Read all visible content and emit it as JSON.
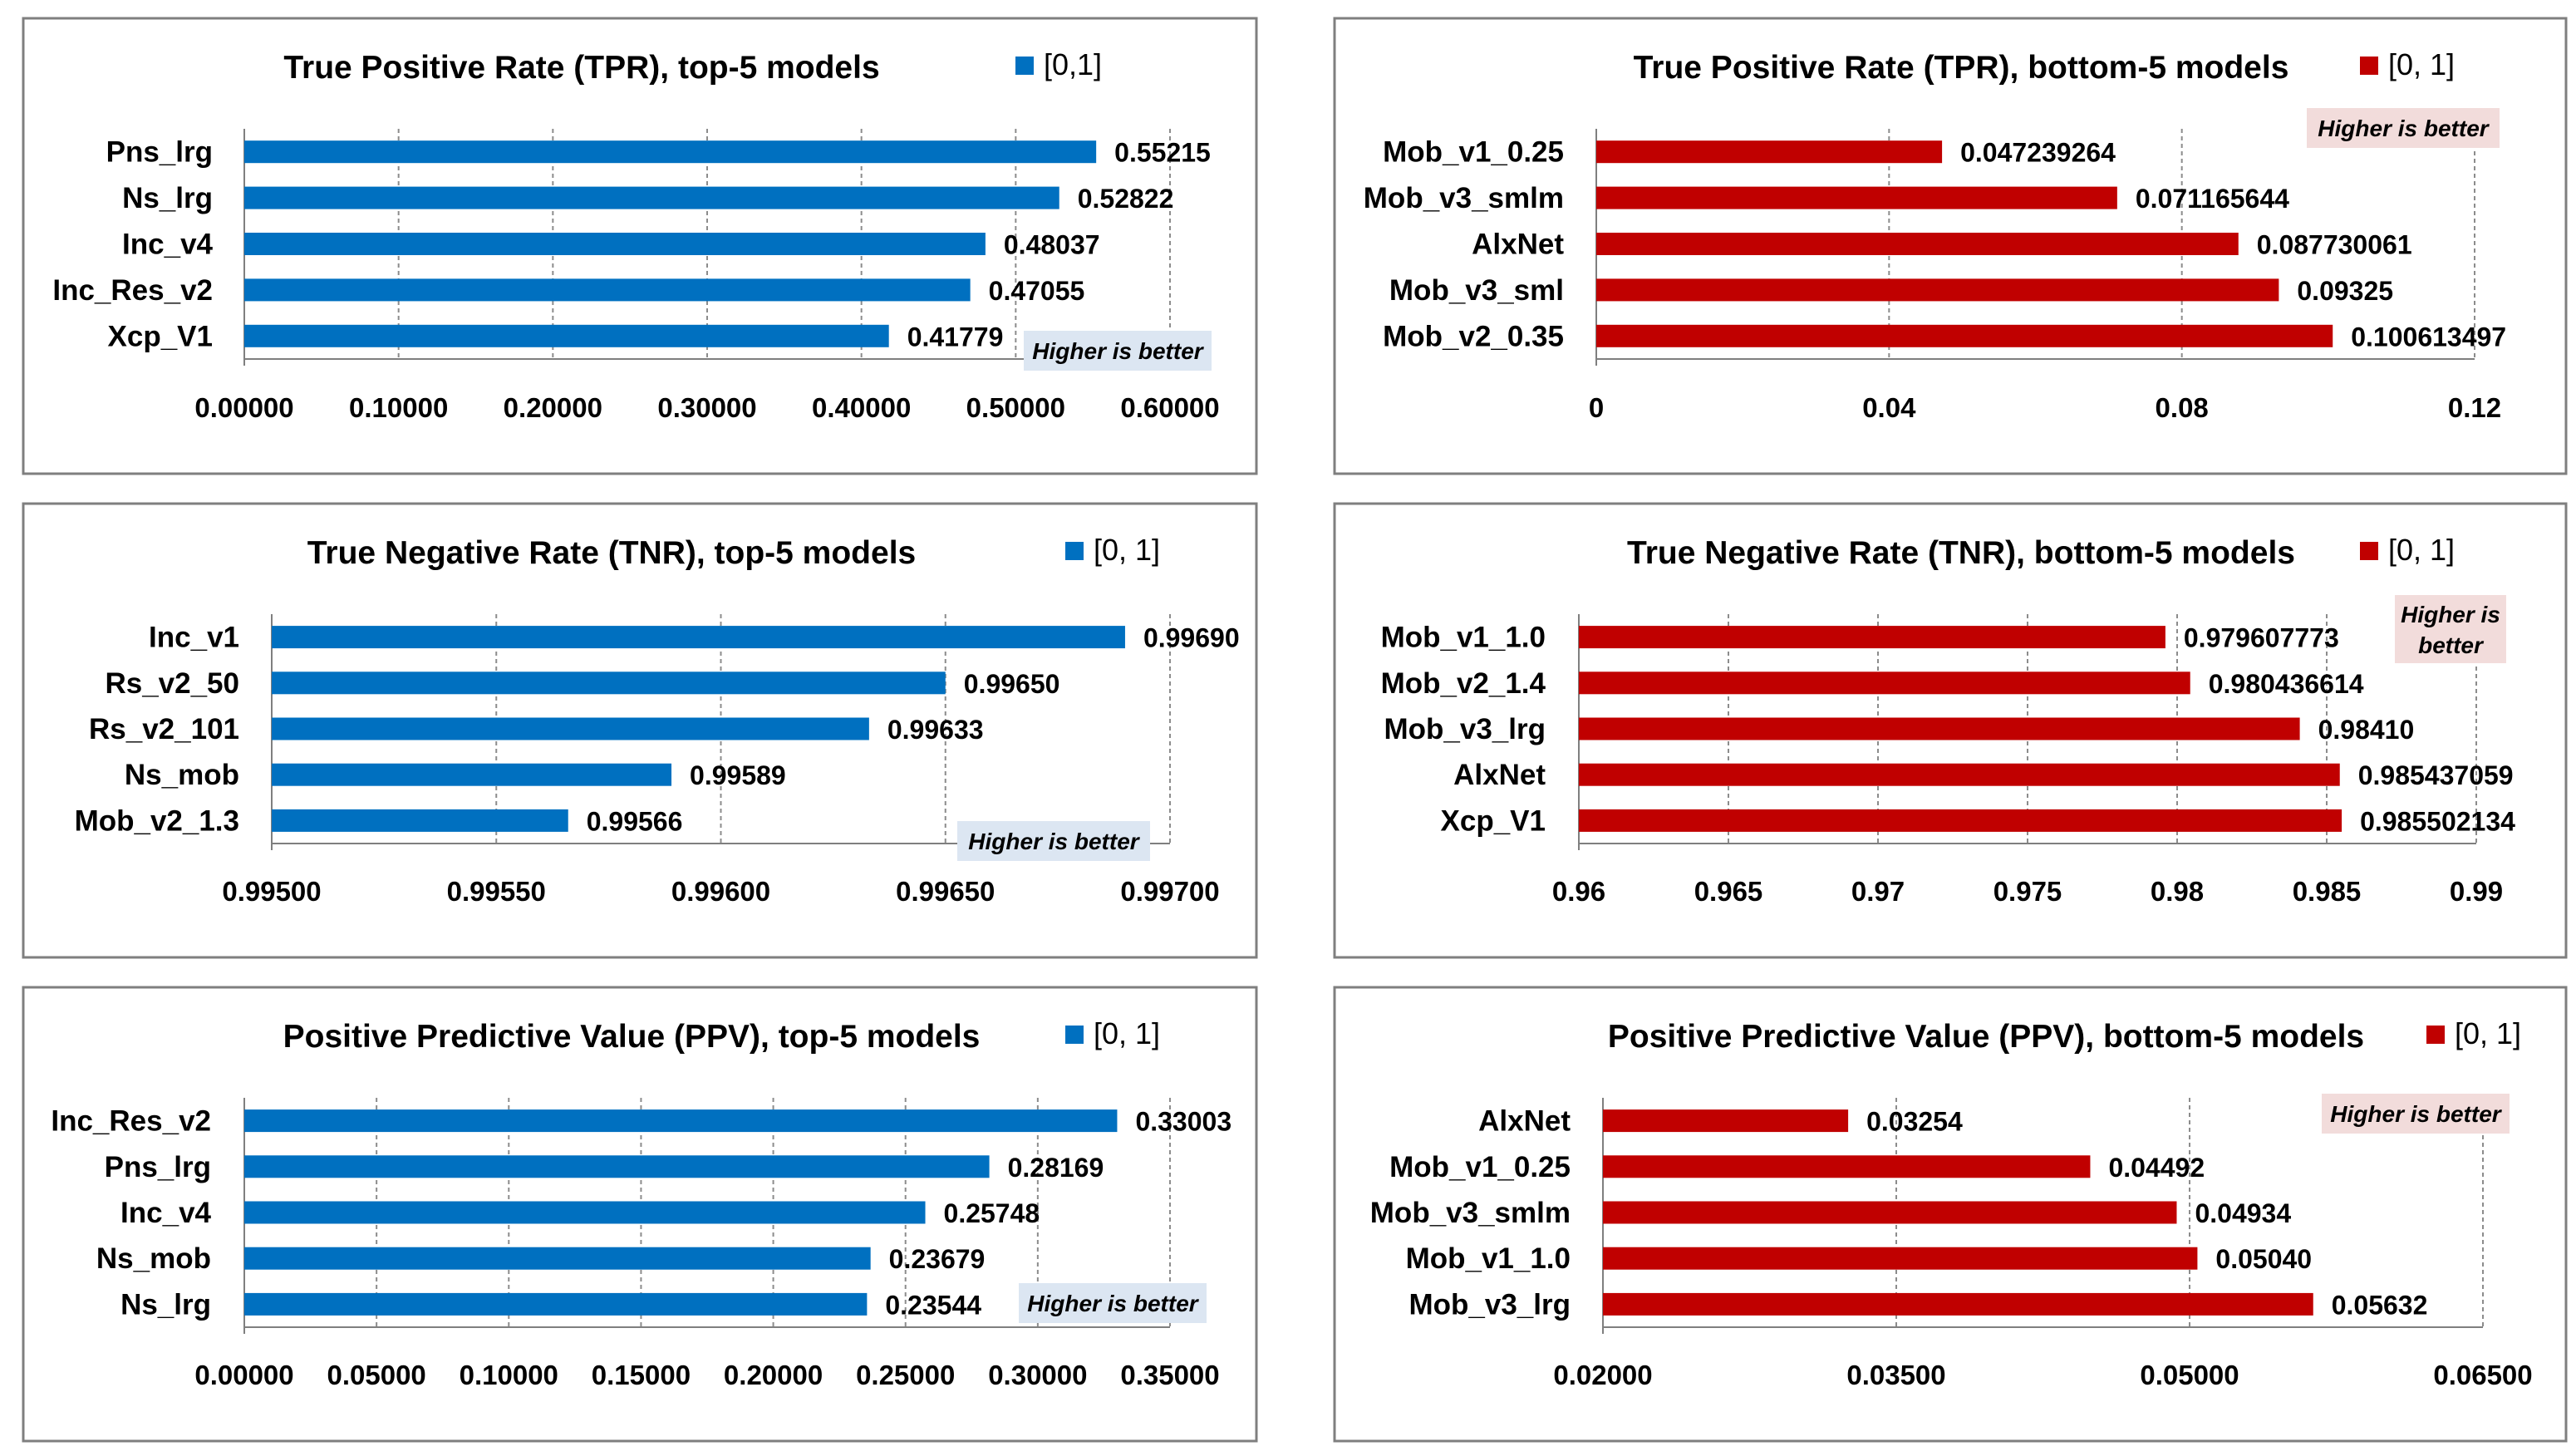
{
  "chart_data": [
    {
      "type": "bar",
      "title": "True Positive Rate (TPR), top-5 models",
      "legend": "[0,1]",
      "note": "Higher is better",
      "color": "#0070c0",
      "note_bg": "#dce6f2",
      "categories": [
        "Pns_lrg",
        "Ns_lrg",
        "Inc_v4",
        "Inc_Res_v2",
        "Xcp_V1"
      ],
      "values": [
        0.55215,
        0.52822,
        0.48037,
        0.47055,
        0.41779
      ],
      "value_labels": [
        "0.55215",
        "0.52822",
        "0.48037",
        "0.47055",
        "0.41779"
      ],
      "xlim": [
        0,
        0.6
      ],
      "ticks": [
        0,
        0.1,
        0.2,
        0.3,
        0.4,
        0.5,
        0.6
      ],
      "tick_labels": [
        "0.00000",
        "0.10000",
        "0.20000",
        "0.30000",
        "0.40000",
        "0.50000",
        "0.60000"
      ]
    },
    {
      "type": "bar",
      "title": "True Positive Rate (TPR), bottom-5 models",
      "legend": "[0, 1]",
      "note": "Higher is better",
      "color": "#c00000",
      "note_bg": "#f2dcdb",
      "categories": [
        "Mob_v1_0.25",
        "Mob_v3_smlm",
        "AlxNet",
        "Mob_v3_sml",
        "Mob_v2_0.35"
      ],
      "values": [
        0.047239264,
        0.071165644,
        0.087730061,
        0.09325,
        0.100613497
      ],
      "value_labels": [
        "0.047239264",
        "0.071165644",
        "0.087730061",
        "0.09325",
        "0.100613497"
      ],
      "xlim": [
        0,
        0.12
      ],
      "ticks": [
        0,
        0.04,
        0.08,
        0.12
      ],
      "tick_labels": [
        "0",
        "0.04",
        "0.08",
        "0.12"
      ]
    },
    {
      "type": "bar",
      "title": "True Negative Rate (TNR), top-5 models",
      "legend": "[0, 1]",
      "note": "Higher is better",
      "color": "#0070c0",
      "note_bg": "#dce6f2",
      "categories": [
        "Inc_v1",
        "Rs_v2_50",
        "Rs_v2_101",
        "Ns_mob",
        "Mob_v2_1.3"
      ],
      "values": [
        0.9969,
        0.9965,
        0.99633,
        0.99589,
        0.99566
      ],
      "value_labels": [
        "0.99690",
        "0.99650",
        "0.99633",
        "0.99589",
        "0.99566"
      ],
      "xlim": [
        0.995,
        0.997
      ],
      "ticks": [
        0.995,
        0.9955,
        0.996,
        0.9965,
        0.997
      ],
      "tick_labels": [
        "0.99500",
        "0.99550",
        "0.99600",
        "0.99650",
        "0.99700"
      ]
    },
    {
      "type": "bar",
      "title": "True Negative Rate (TNR), bottom-5 models",
      "legend": "[0, 1]",
      "note": "Higher is better",
      "color": "#c00000",
      "note_bg": "#f2dcdb",
      "categories": [
        "Mob_v1_1.0",
        "Mob_v2_1.4",
        "Mob_v3_lrg",
        "AlxNet",
        "Xcp_V1"
      ],
      "values": [
        0.979607773,
        0.980436614,
        0.9841,
        0.985437059,
        0.985502134
      ],
      "value_labels": [
        "0.979607773",
        "0.980436614",
        "0.98410",
        "0.985437059",
        "0.985502134"
      ],
      "xlim": [
        0.96,
        0.99
      ],
      "ticks": [
        0.96,
        0.965,
        0.97,
        0.975,
        0.98,
        0.985,
        0.99
      ],
      "tick_labels": [
        "0.96",
        "0.965",
        "0.97",
        "0.975",
        "0.98",
        "0.985",
        "0.99"
      ]
    },
    {
      "type": "bar",
      "title": "Positive Predictive Value (PPV), top-5 models",
      "legend": "[0, 1]",
      "note": "Higher is better",
      "color": "#0070c0",
      "note_bg": "#dce6f2",
      "categories": [
        "Inc_Res_v2",
        "Pns_lrg",
        "Inc_v4",
        "Ns_mob",
        "Ns_lrg"
      ],
      "values": [
        0.33003,
        0.28169,
        0.25748,
        0.23679,
        0.23544
      ],
      "value_labels": [
        "0.33003",
        "0.28169",
        "0.25748",
        "0.23679",
        "0.23544"
      ],
      "xlim": [
        0,
        0.35
      ],
      "ticks": [
        0,
        0.05,
        0.1,
        0.15,
        0.2,
        0.25,
        0.3,
        0.35
      ],
      "tick_labels": [
        "0.00000",
        "0.05000",
        "0.10000",
        "0.15000",
        "0.20000",
        "0.25000",
        "0.30000",
        "0.35000"
      ]
    },
    {
      "type": "bar",
      "title": "Positive Predictive Value (PPV), bottom-5 models",
      "legend": "[0, 1]",
      "note": "Higher is better",
      "color": "#c00000",
      "note_bg": "#f2dcdb",
      "categories": [
        "AlxNet",
        "Mob_v1_0.25",
        "Mob_v3_smlm",
        "Mob_v1_1.0",
        "Mob_v3_lrg"
      ],
      "values": [
        0.03254,
        0.04492,
        0.04934,
        0.0504,
        0.05632
      ],
      "value_labels": [
        "0.03254",
        "0.04492",
        "0.04934",
        "0.05040",
        "0.05632"
      ],
      "xlim": [
        0.02,
        0.065
      ],
      "ticks": [
        0.02,
        0.035,
        0.05,
        0.065
      ],
      "tick_labels": [
        "0.02000",
        "0.03500",
        "0.05000",
        "0.06500"
      ]
    }
  ]
}
